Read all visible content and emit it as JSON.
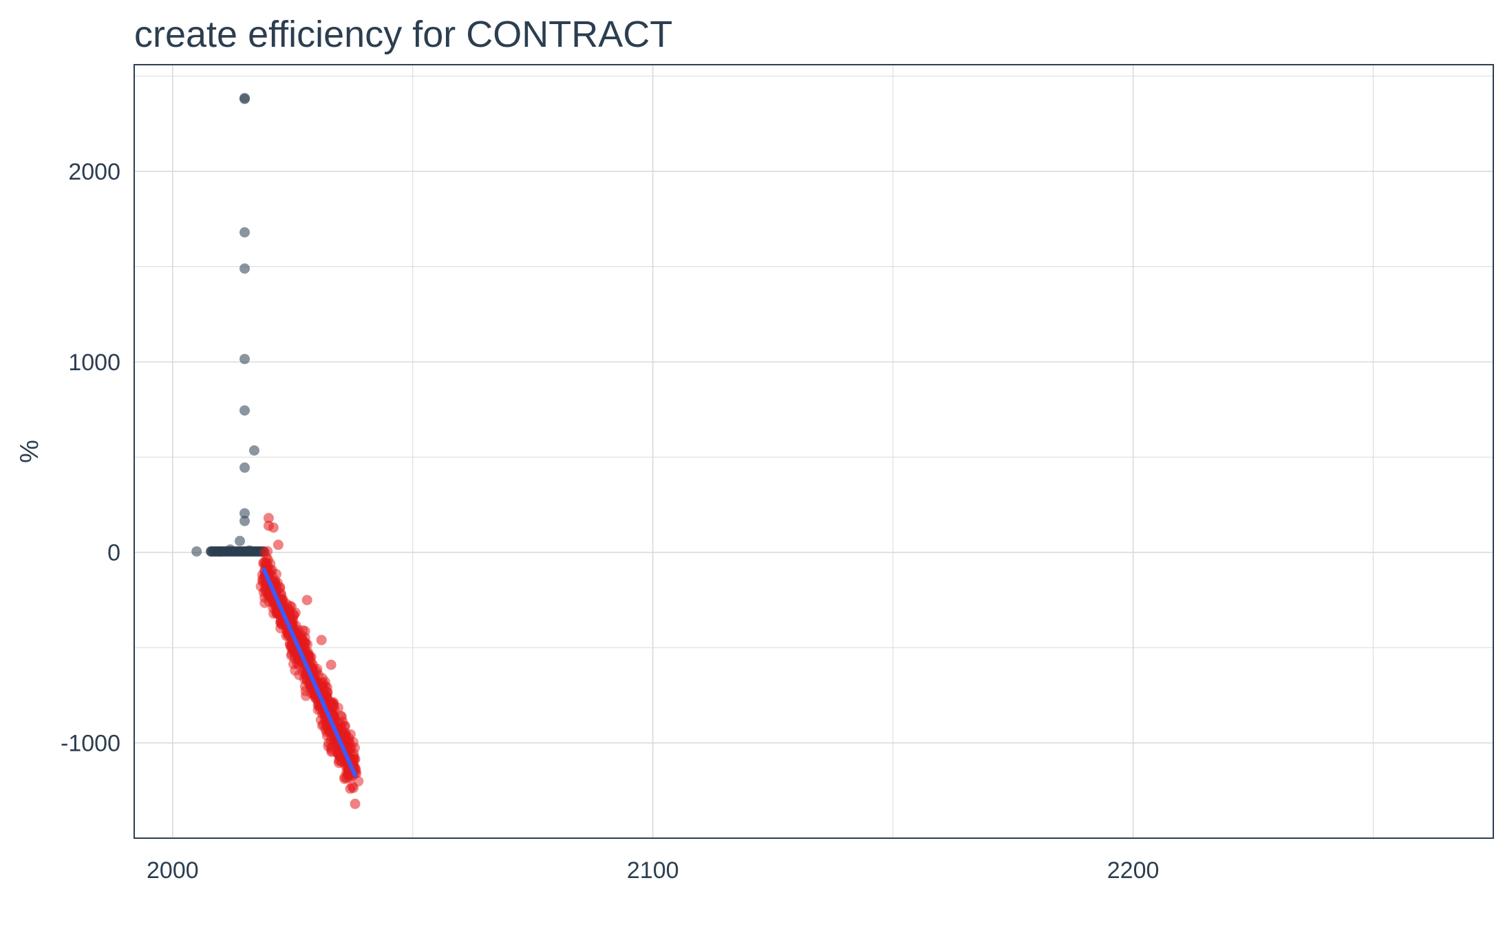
{
  "chart_data": {
    "type": "scatter",
    "title": "create efficiency for CONTRACT",
    "xlabel": "",
    "ylabel": "%",
    "xlim": [
      1992,
      2275
    ],
    "ylim": [
      -1500,
      2560
    ],
    "x_ticks": [
      2000,
      2100,
      2200
    ],
    "y_ticks": [
      -1000,
      0,
      1000,
      2000
    ],
    "x_minor_ticks": [
      2050,
      2150,
      2250
    ],
    "y_minor_ticks": [
      -500,
      500,
      1500,
      2500
    ],
    "grid": true,
    "legend": "none",
    "colors": {
      "historical": "#2c3e50",
      "forecast": "#e31a1c",
      "trend": "#3b5bfd",
      "grid": "#d9d9d9",
      "border": "#2c3e50"
    },
    "historical_points": [
      {
        "x": 2005,
        "y": 5
      },
      {
        "x": 2008,
        "y": 5
      },
      {
        "x": 2010,
        "y": 5
      },
      {
        "x": 2015,
        "y": 2380
      },
      {
        "x": 2015,
        "y": 2385
      },
      {
        "x": 2015,
        "y": 1680
      },
      {
        "x": 2015,
        "y": 1490
      },
      {
        "x": 2015,
        "y": 1015
      },
      {
        "x": 2015,
        "y": 745
      },
      {
        "x": 2017,
        "y": 535
      },
      {
        "x": 2015,
        "y": 445
      },
      {
        "x": 2015,
        "y": 205
      },
      {
        "x": 2015,
        "y": 165
      },
      {
        "x": 2014,
        "y": 60
      },
      {
        "x": 2012,
        "y": 15
      },
      {
        "x": 2016,
        "y": 10
      }
    ],
    "historical_band": {
      "x_start": 2008,
      "x_end": 2019,
      "y": 5
    },
    "forecast_band": {
      "x_start": 2019,
      "x_end": 2038,
      "y_start": -90,
      "y_end": -1170,
      "spread": 110
    },
    "forecast_outliers": [
      {
        "x": 2020,
        "y": 180
      },
      {
        "x": 2020,
        "y": 140
      },
      {
        "x": 2021,
        "y": 130
      },
      {
        "x": 2022,
        "y": 40
      },
      {
        "x": 2028,
        "y": -250
      },
      {
        "x": 2031,
        "y": -460
      },
      {
        "x": 2033,
        "y": -590
      },
      {
        "x": 2038,
        "y": -1320
      },
      {
        "x": 2037,
        "y": -1240
      }
    ],
    "trend_line": [
      {
        "x": 2019,
        "y": -90
      },
      {
        "x": 2038,
        "y": -1170
      }
    ]
  }
}
